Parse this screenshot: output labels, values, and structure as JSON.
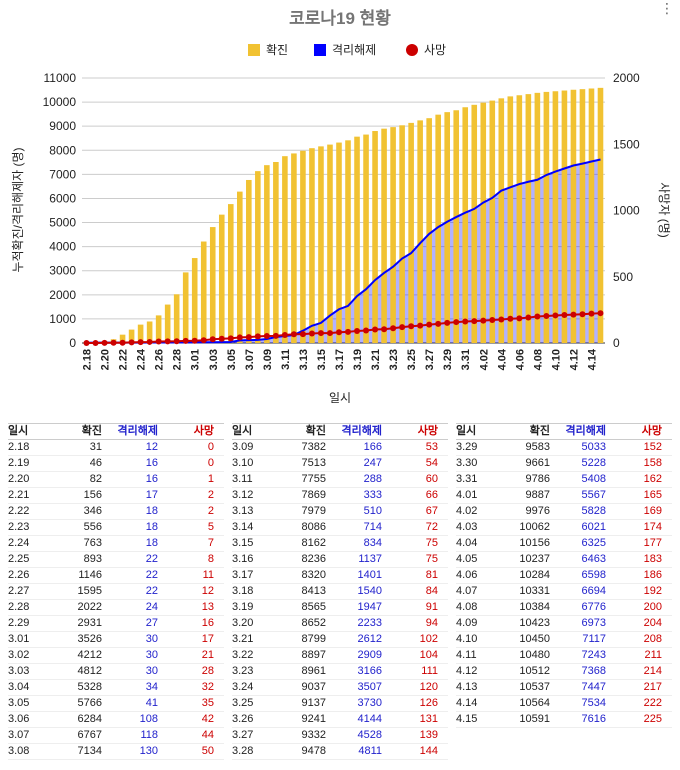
{
  "chart_data": {
    "type": "combo",
    "title": "코로나19 현황",
    "xlabel": "일시",
    "ylabel_left": "누적확진/격리해제자 (명)",
    "ylabel_right": "사망자 (명)",
    "ylim_left": [
      0,
      11000
    ],
    "ylim_right": [
      0,
      2000
    ],
    "left_ticks": [
      0,
      1000,
      2000,
      3000,
      4000,
      5000,
      6000,
      7000,
      8000,
      9000,
      10000,
      11000
    ],
    "right_ticks": [
      0,
      500,
      1000,
      1500,
      2000
    ],
    "legend_position": "top",
    "grid": true,
    "x": [
      "2.18",
      "2.19",
      "2.20",
      "2.21",
      "2.22",
      "2.23",
      "2.24",
      "2.25",
      "2.26",
      "2.27",
      "2.28",
      "2.29",
      "3.01",
      "3.02",
      "3.03",
      "3.04",
      "3.05",
      "3.06",
      "3.07",
      "3.08",
      "3.09",
      "3.10",
      "3.11",
      "3.12",
      "3.13",
      "3.14",
      "3.15",
      "3.16",
      "3.17",
      "3.18",
      "3.19",
      "3.20",
      "3.21",
      "3.22",
      "3.23",
      "3.24",
      "3.25",
      "3.26",
      "3.27",
      "3.28",
      "3.29",
      "3.30",
      "3.31",
      "4.01",
      "4.02",
      "4.03",
      "4.04",
      "4.05",
      "4.06",
      "4.07",
      "4.08",
      "4.09",
      "4.10",
      "4.11",
      "4.12",
      "4.13",
      "4.14",
      "4.15"
    ],
    "x_tick_labels": [
      "2.18",
      "2.20",
      "2.22",
      "2.24",
      "2.26",
      "2.28",
      "3.01",
      "3.03",
      "3.05",
      "3.07",
      "3.09",
      "3.11",
      "3.13",
      "3.15",
      "3.17",
      "3.19",
      "3.21",
      "3.23",
      "3.25",
      "3.27",
      "3.29",
      "3.31",
      "4.02",
      "4.04",
      "4.06",
      "4.08",
      "4.10",
      "4.12",
      "4.14"
    ],
    "series": [
      {
        "name": "확진",
        "type": "bar",
        "axis": "left",
        "color": "#f1c232",
        "values": [
          31,
          46,
          82,
          156,
          346,
          556,
          763,
          893,
          1146,
          1595,
          2022,
          2931,
          3526,
          4212,
          4812,
          5328,
          5766,
          6284,
          6767,
          7134,
          7382,
          7513,
          7755,
          7869,
          7979,
          8086,
          8162,
          8236,
          8320,
          8413,
          8565,
          8652,
          8799,
          8897,
          8961,
          9037,
          9137,
          9241,
          9332,
          9478,
          9583,
          9661,
          9786,
          9887,
          9976,
          10062,
          10156,
          10237,
          10284,
          10331,
          10384,
          10423,
          10450,
          10480,
          10512,
          10537,
          10564,
          10591
        ]
      },
      {
        "name": "격리해제",
        "type": "area",
        "axis": "left",
        "color": "#0000ff",
        "values": [
          12,
          16,
          16,
          17,
          18,
          18,
          18,
          22,
          22,
          22,
          24,
          27,
          30,
          30,
          30,
          34,
          41,
          108,
          118,
          130,
          166,
          247,
          288,
          333,
          510,
          714,
          834,
          1137,
          1401,
          1540,
          1947,
          2233,
          2612,
          2909,
          3166,
          3507,
          3730,
          4144,
          4528,
          4811,
          5033,
          5228,
          5408,
          5567,
          5828,
          6021,
          6325,
          6463,
          6598,
          6694,
          6776,
          6973,
          7117,
          7243,
          7368,
          7447,
          7534,
          7616
        ]
      },
      {
        "name": "사망",
        "type": "line",
        "axis": "right",
        "color": "#cc0000",
        "values": [
          0,
          0,
          1,
          2,
          2,
          5,
          7,
          8,
          11,
          12,
          13,
          16,
          17,
          21,
          28,
          32,
          35,
          42,
          44,
          50,
          53,
          54,
          60,
          66,
          67,
          72,
          75,
          75,
          81,
          84,
          91,
          94,
          102,
          104,
          111,
          120,
          126,
          131,
          139,
          144,
          152,
          158,
          162,
          165,
          169,
          174,
          177,
          183,
          186,
          192,
          200,
          204,
          208,
          211,
          214,
          217,
          222,
          225
        ]
      }
    ]
  }
}
